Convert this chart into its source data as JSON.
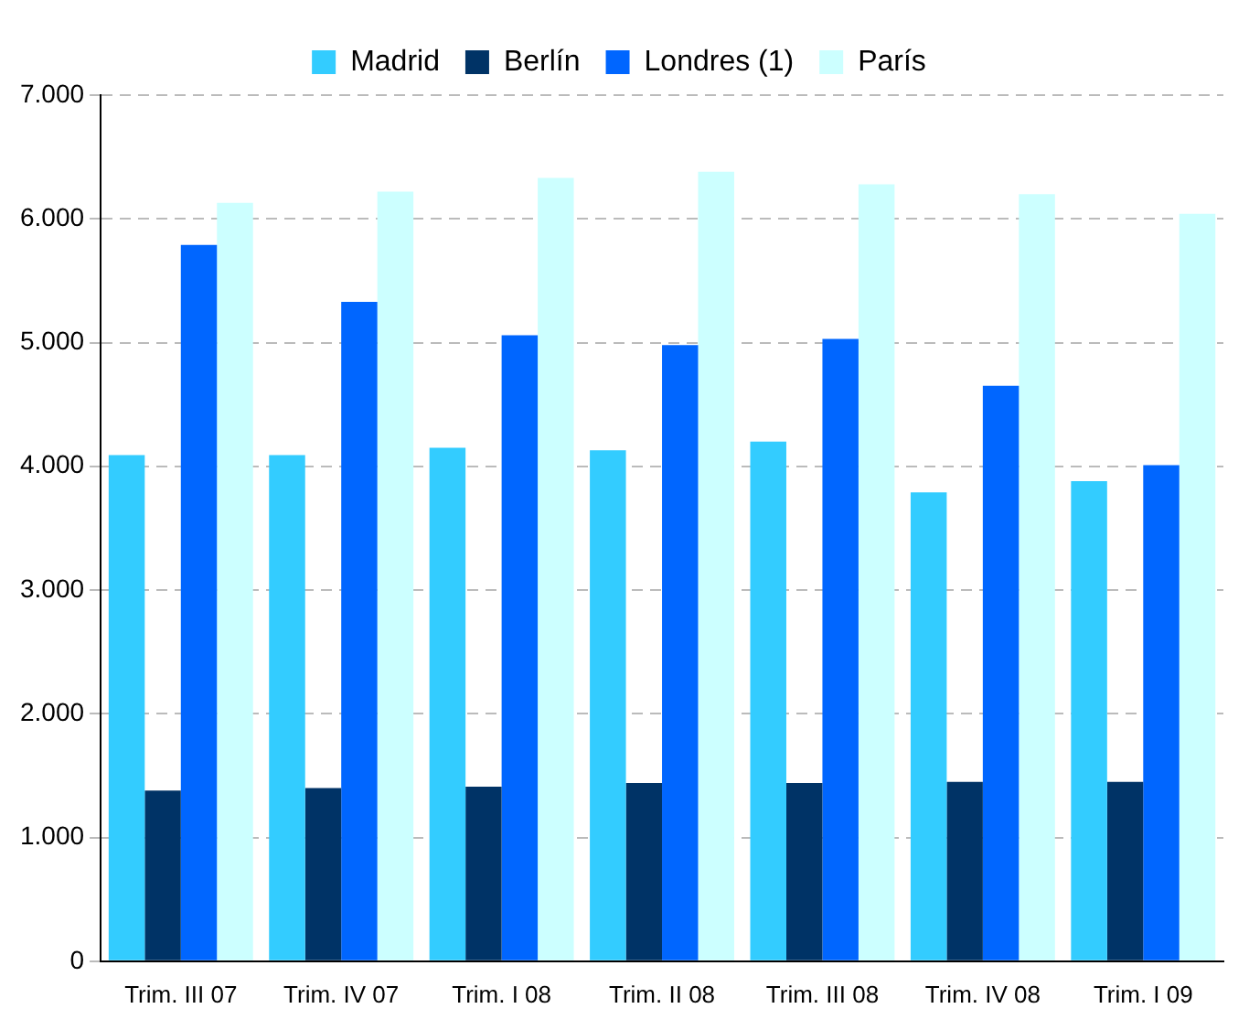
{
  "chart_data": {
    "type": "bar",
    "categories": [
      "Trim. III 07",
      "Trim. IV 07",
      "Trim. I 08",
      "Trim. II 08",
      "Trim. III 08",
      "Trim. IV 08",
      "Trim. I 09"
    ],
    "series": [
      {
        "name": "Madrid",
        "color": "#33ccff",
        "values": [
          4090,
          4090,
          4150,
          4130,
          4200,
          3790,
          3880
        ]
      },
      {
        "name": "Berlín",
        "color": "#003366",
        "values": [
          1380,
          1400,
          1410,
          1440,
          1440,
          1450,
          1450
        ]
      },
      {
        "name": "Londres (1)",
        "color": "#0066ff",
        "values": [
          5790,
          5330,
          5060,
          4980,
          5030,
          4650,
          4010
        ]
      },
      {
        "name": "París",
        "color": "#ccffff",
        "values": [
          6130,
          6220,
          6330,
          6380,
          6280,
          6200,
          6040
        ]
      }
    ],
    "ylim": [
      0,
      7000
    ],
    "yticks": [
      {
        "value": 0,
        "label": "0"
      },
      {
        "value": 1000,
        "label": "1.000"
      },
      {
        "value": 2000,
        "label": "2.000"
      },
      {
        "value": 3000,
        "label": "3.000"
      },
      {
        "value": 4000,
        "label": "4.000"
      },
      {
        "value": 5000,
        "label": "5.000"
      },
      {
        "value": 6000,
        "label": "6.000"
      },
      {
        "value": 7000,
        "label": "7.000"
      }
    ],
    "grid": "y",
    "legend": "top"
  }
}
